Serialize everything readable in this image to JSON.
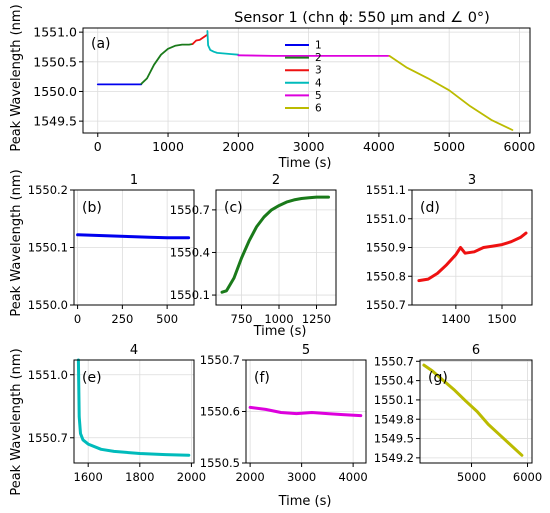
{
  "figure": {
    "title": "Sensor 1 (chn ϕ: 550 µm and ∠ 0°)",
    "ylabel": "Peak Wavelength (nm)",
    "xlabel": "Time (s)"
  },
  "chart_data": [
    {
      "id": "a",
      "type": "line",
      "panel_label": "(a)",
      "title": "Sensor 1 (chn ϕ: 550 µm and ∠ 0°)",
      "xlabel": "Time (s)",
      "ylabel": "Peak Wavelength (nm)",
      "xlim": [
        -210,
        6150
      ],
      "ylim": [
        1549.3,
        1551.07
      ],
      "xticks": [
        0,
        1000,
        2000,
        3000,
        4000,
        5000,
        6000
      ],
      "yticks": [
        1549.5,
        1550.0,
        1550.5,
        1551.0
      ],
      "ytick_decimals": 1,
      "grid": true,
      "legend_position": "center",
      "series": [
        {
          "name": "1",
          "color": "#0000ee",
          "x": [
            0,
            300,
            620
          ],
          "y": [
            1550.12,
            1550.12,
            1550.12
          ]
        },
        {
          "name": "2",
          "color": "#1a7a1a",
          "x": [
            620,
            700,
            800,
            900,
            1000,
            1100,
            1200,
            1300,
            1350
          ],
          "y": [
            1550.13,
            1550.22,
            1550.45,
            1550.62,
            1550.72,
            1550.77,
            1550.79,
            1550.79,
            1550.8
          ]
        },
        {
          "name": "3",
          "color": "#ee1111",
          "x": [
            1350,
            1400,
            1450,
            1500,
            1550
          ],
          "y": [
            1550.8,
            1550.86,
            1550.87,
            1550.91,
            1550.95
          ]
        },
        {
          "name": "4",
          "color": "#00bbbb",
          "x": [
            1560,
            1570,
            1600,
            1650,
            1700,
            1800,
            1900,
            2000
          ],
          "y": [
            1551.02,
            1550.78,
            1550.7,
            1550.67,
            1550.65,
            1550.64,
            1550.63,
            1550.62
          ]
        },
        {
          "name": "5",
          "color": "#dd00dd",
          "x": [
            2000,
            2500,
            3000,
            3500,
            4000,
            4150
          ],
          "y": [
            1550.61,
            1550.6,
            1550.6,
            1550.6,
            1550.6,
            1550.6
          ]
        },
        {
          "name": "6",
          "color": "#bbbb00",
          "x": [
            4150,
            4400,
            4700,
            5000,
            5300,
            5600,
            5900
          ],
          "y": [
            1550.6,
            1550.4,
            1550.22,
            1550.02,
            1549.75,
            1549.52,
            1549.35
          ]
        }
      ]
    },
    {
      "id": "b",
      "type": "line",
      "panel_label": "(b)",
      "title": "1",
      "xlabel": "",
      "ylabel": "Peak Wavelength (nm)",
      "xlim": [
        -20,
        650
      ],
      "ylim": [
        1550.0,
        1550.2
      ],
      "xticks": [
        0,
        250,
        500
      ],
      "yticks": [
        1550.0,
        1550.1,
        1550.2
      ],
      "ytick_decimals": 1,
      "grid": true,
      "series": [
        {
          "name": "",
          "color": "#0000ee",
          "x": [
            0,
            100,
            200,
            300,
            400,
            500,
            620
          ],
          "y": [
            1550.122,
            1550.121,
            1550.12,
            1550.119,
            1550.118,
            1550.117,
            1550.117
          ]
        }
      ]
    },
    {
      "id": "c",
      "type": "line",
      "panel_label": "(c)",
      "title": "2",
      "xlabel": "Time (s)",
      "ylabel": "",
      "xlim": [
        580,
        1380
      ],
      "ylim": [
        1550.03,
        1550.84
      ],
      "xticks": [
        750,
        1000,
        1250
      ],
      "yticks": [
        1550.1,
        1550.4,
        1550.7
      ],
      "ytick_decimals": 1,
      "grid": true,
      "series": [
        {
          "name": "",
          "color": "#1a7a1a",
          "x": [
            620,
            650,
            700,
            750,
            800,
            850,
            900,
            950,
            1000,
            1050,
            1100,
            1150,
            1200,
            1250,
            1300,
            1330
          ],
          "y": [
            1550.12,
            1550.13,
            1550.22,
            1550.36,
            1550.48,
            1550.58,
            1550.65,
            1550.7,
            1550.73,
            1550.755,
            1550.77,
            1550.78,
            1550.785,
            1550.79,
            1550.79,
            1550.79
          ]
        }
      ]
    },
    {
      "id": "d",
      "type": "line",
      "panel_label": "(d)",
      "title": "3",
      "xlabel": "",
      "ylabel": "",
      "xlim": [
        1305,
        1565
      ],
      "ylim": [
        1550.7,
        1551.1
      ],
      "xticks": [
        1400,
        1500
      ],
      "yticks": [
        1550.7,
        1550.8,
        1550.9,
        1551.0,
        1551.1
      ],
      "ytick_decimals": 1,
      "grid": true,
      "series": [
        {
          "name": "",
          "color": "#ee1111",
          "x": [
            1320,
            1340,
            1360,
            1380,
            1400,
            1410,
            1420,
            1440,
            1460,
            1480,
            1500,
            1520,
            1540,
            1552
          ],
          "y": [
            1550.785,
            1550.79,
            1550.81,
            1550.84,
            1550.875,
            1550.9,
            1550.88,
            1550.885,
            1550.9,
            1550.905,
            1550.91,
            1550.92,
            1550.935,
            1550.95
          ]
        }
      ]
    },
    {
      "id": "e",
      "type": "line",
      "panel_label": "(e)",
      "title": "4",
      "xlabel": "",
      "ylabel": "Peak Wavelength (nm)",
      "xlim": [
        1545,
        2010
      ],
      "ylim": [
        1550.58,
        1551.07
      ],
      "xticks": [
        1600,
        1800,
        2000
      ],
      "yticks": [
        1550.7,
        1551.0
      ],
      "ytick_decimals": 1,
      "grid": true,
      "series": [
        {
          "name": "",
          "color": "#00bbbb",
          "x": [
            1562,
            1565,
            1570,
            1580,
            1600,
            1650,
            1700,
            1800,
            1900,
            1990
          ],
          "y": [
            1551.07,
            1550.8,
            1550.72,
            1550.69,
            1550.67,
            1550.645,
            1550.635,
            1550.625,
            1550.62,
            1550.617
          ]
        }
      ]
    },
    {
      "id": "f",
      "type": "line",
      "panel_label": "(f)",
      "title": "5",
      "xlabel": "Time (s)",
      "ylabel": "",
      "xlim": [
        1920,
        4250
      ],
      "ylim": [
        1550.5,
        1550.7
      ],
      "xticks": [
        2000,
        3000,
        4000
      ],
      "yticks": [
        1550.5,
        1550.6,
        1550.7
      ],
      "ytick_decimals": 1,
      "grid": true,
      "series": [
        {
          "name": "",
          "color": "#dd00dd",
          "x": [
            2000,
            2300,
            2600,
            2900,
            3200,
            3500,
            3800,
            4150
          ],
          "y": [
            1550.608,
            1550.604,
            1550.598,
            1550.596,
            1550.598,
            1550.596,
            1550.594,
            1550.592
          ]
        }
      ]
    },
    {
      "id": "g",
      "type": "line",
      "panel_label": "(g)",
      "title": "6",
      "xlabel": "",
      "ylabel": "",
      "xlim": [
        4080,
        6080
      ],
      "ylim": [
        1549.12,
        1550.72
      ],
      "xticks": [
        5000,
        6000
      ],
      "yticks": [
        1549.2,
        1549.5,
        1549.8,
        1550.1,
        1550.4,
        1550.7
      ],
      "ytick_decimals": 1,
      "grid": true,
      "series": [
        {
          "name": "",
          "color": "#bbbb00",
          "x": [
            4150,
            4300,
            4500,
            4700,
            4900,
            5100,
            5300,
            5500,
            5700,
            5900
          ],
          "y": [
            1550.64,
            1550.55,
            1550.4,
            1550.25,
            1550.08,
            1549.92,
            1549.72,
            1549.56,
            1549.4,
            1549.24
          ]
        }
      ]
    }
  ]
}
